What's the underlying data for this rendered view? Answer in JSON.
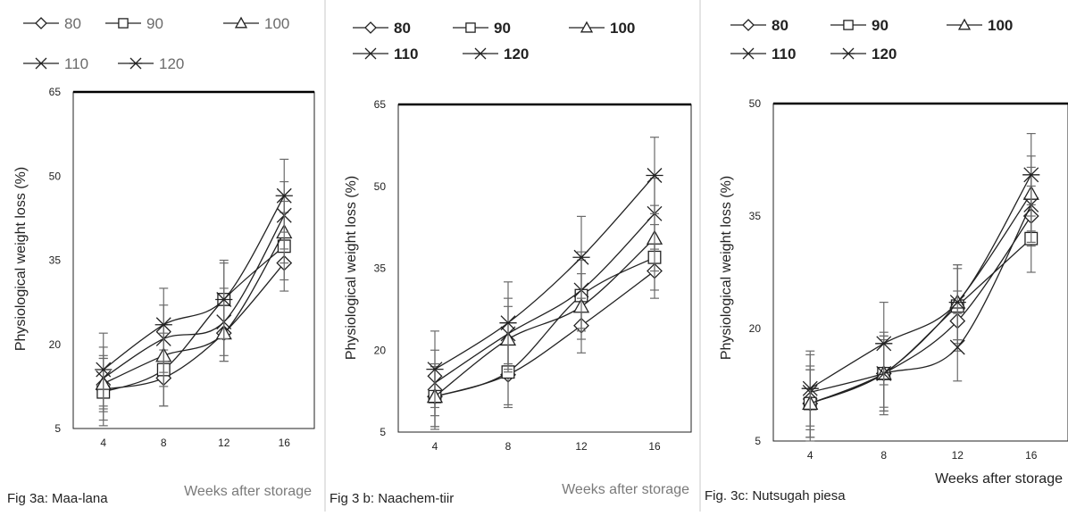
{
  "figure": {
    "background": "#ffffff",
    "line_color": "#222222",
    "errorbar_color": "#6b6b6b",
    "panel_border_color": "#c8c8c8"
  },
  "chart_data": [
    {
      "type": "line",
      "caption": "Fig 3a: Maa-lana",
      "xlabel": "Weeks after storage",
      "ylabel": "Physiological weight loss (%)",
      "x": [
        4,
        8,
        12,
        16
      ],
      "x_tick_labels": [
        "4",
        "8",
        "12",
        "16"
      ],
      "ylim": [
        5,
        65
      ],
      "y_ticks": [
        5,
        20,
        35,
        50,
        65
      ],
      "legend_position": "top",
      "series": [
        {
          "name": "80",
          "marker": "diamond",
          "values": [
            12,
            14,
            22,
            34.5
          ],
          "errors": [
            5.5,
            5,
            5,
            5
          ]
        },
        {
          "name": "90",
          "marker": "square",
          "values": [
            11.5,
            15.5,
            28,
            37.5
          ],
          "errors": [
            6,
            6.5,
            6.5,
            6
          ]
        },
        {
          "name": "100",
          "marker": "triangle",
          "values": [
            13,
            18,
            22,
            40
          ],
          "errors": [
            5,
            5.5,
            5,
            5.5
          ]
        },
        {
          "name": "110",
          "marker": "x",
          "values": [
            14,
            21,
            24,
            43
          ],
          "errors": [
            5.5,
            6,
            6,
            6
          ]
        },
        {
          "name": "120",
          "marker": "star",
          "values": [
            15.5,
            23.5,
            28,
            46.5
          ],
          "errors": [
            6.5,
            6.5,
            7,
            6.5
          ]
        }
      ]
    },
    {
      "type": "line",
      "caption": "Fig 3 b: Naachem-tiir",
      "xlabel": "Weeks after storage",
      "ylabel": "Physiological weight loss (%)",
      "x": [
        4,
        8,
        12,
        16
      ],
      "x_tick_labels": [
        "4",
        "8",
        "12",
        "16"
      ],
      "ylim": [
        5,
        65
      ],
      "y_ticks": [
        5,
        20,
        35,
        50,
        65
      ],
      "legend_position": "top",
      "series": [
        {
          "name": "80",
          "marker": "diamond",
          "values": [
            11.5,
            15.5,
            24.5,
            34.5
          ],
          "errors": [
            5.5,
            5.5,
            5,
            5
          ]
        },
        {
          "name": "90",
          "marker": "square",
          "values": [
            11.5,
            16,
            30,
            37
          ],
          "errors": [
            6,
            6.5,
            6.5,
            6
          ]
        },
        {
          "name": "100",
          "marker": "triangle",
          "values": [
            11.5,
            22,
            28,
            40.5
          ],
          "errors": [
            5.5,
            6,
            6,
            6
          ]
        },
        {
          "name": "110",
          "marker": "x",
          "values": [
            14,
            23,
            31,
            45
          ],
          "errors": [
            6,
            6.5,
            7,
            6.5
          ]
        },
        {
          "name": "120",
          "marker": "star",
          "values": [
            16.5,
            25,
            37,
            52
          ],
          "errors": [
            7,
            7.5,
            7.5,
            7
          ]
        }
      ]
    },
    {
      "type": "line",
      "caption": "Fig. 3c: Nutsugah piesa",
      "xlabel": "Weeks after storage",
      "ylabel": "Physiological weight loss (%)",
      "x": [
        4,
        8,
        12,
        16
      ],
      "x_tick_labels": [
        "4",
        "8",
        "12",
        "16"
      ],
      "ylim": [
        5,
        50
      ],
      "y_ticks": [
        5,
        20,
        35,
        50
      ],
      "legend_position": "top",
      "series": [
        {
          "name": "80",
          "marker": "diamond",
          "values": [
            10,
            14,
            21,
            35
          ],
          "errors": [
            4.5,
            4.5,
            4,
            4
          ]
        },
        {
          "name": "90",
          "marker": "square",
          "values": [
            10,
            14,
            23,
            32
          ],
          "errors": [
            5,
            5,
            5,
            4.5
          ]
        },
        {
          "name": "100",
          "marker": "triangle",
          "values": [
            10,
            14,
            23.5,
            38
          ],
          "errors": [
            4.5,
            5,
            5,
            5
          ]
        },
        {
          "name": "110",
          "marker": "x",
          "values": [
            11.5,
            14,
            17.5,
            36.5
          ],
          "errors": [
            5,
            5.5,
            4.5,
            5
          ]
        },
        {
          "name": "120",
          "marker": "star",
          "values": [
            12,
            18,
            23.5,
            40.5
          ],
          "errors": [
            5,
            5.5,
            5,
            5.5
          ]
        }
      ]
    }
  ]
}
